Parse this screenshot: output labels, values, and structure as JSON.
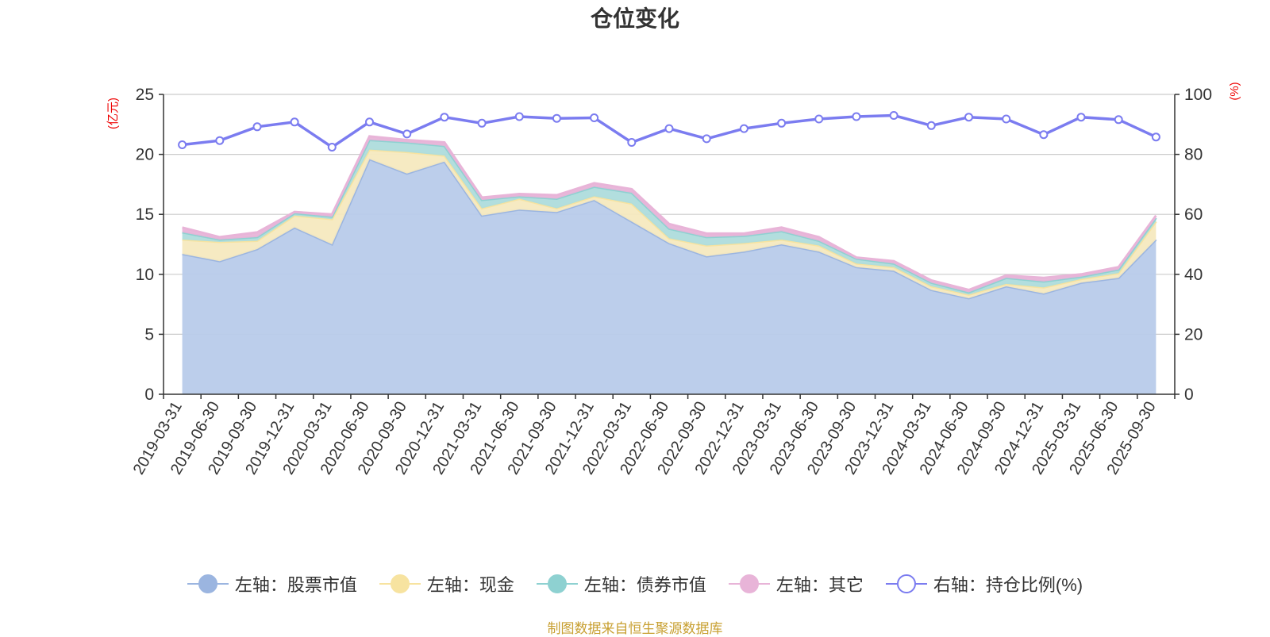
{
  "chart_data": {
    "type": "area",
    "title": "仓位变化",
    "left_axis_unit": "(亿元)",
    "right_axis_unit": "(%)",
    "left_ylim": [
      0,
      25
    ],
    "left_ticks": [
      0,
      5,
      10,
      15,
      20,
      25
    ],
    "right_ylim": [
      0,
      100
    ],
    "right_ticks": [
      0,
      20,
      40,
      60,
      80,
      100
    ],
    "categories": [
      "2019-03-31",
      "2019-06-30",
      "2019-09-30",
      "2019-12-31",
      "2020-03-31",
      "2020-06-30",
      "2020-09-30",
      "2020-12-31",
      "2021-03-31",
      "2021-06-30",
      "2021-09-30",
      "2021-12-31",
      "2022-03-31",
      "2022-06-30",
      "2022-09-30",
      "2022-12-31",
      "2023-03-31",
      "2023-06-30",
      "2023-09-30",
      "2023-12-31",
      "2024-03-31",
      "2024-06-30",
      "2024-09-30",
      "2024-12-31",
      "2025-03-31",
      "2025-06-30",
      "2025-09-30"
    ],
    "stacked_series": [
      {
        "name": "左轴：股票市值",
        "color": "#9bb5e0",
        "fill": "#b8cbea",
        "values": [
          11.7,
          11.1,
          12.1,
          13.9,
          12.5,
          19.6,
          18.4,
          19.4,
          14.9,
          15.4,
          15.2,
          16.2,
          14.4,
          12.6,
          11.5,
          11.9,
          12.5,
          11.9,
          10.6,
          10.3,
          8.7,
          8.0,
          9.0,
          8.4,
          9.3,
          9.7,
          12.9
        ]
      },
      {
        "name": "左轴：现金",
        "color": "#f7e3a0",
        "fill": "#f6e9bf",
        "values": [
          1.2,
          1.6,
          0.7,
          1.0,
          2.1,
          0.8,
          1.8,
          0.5,
          0.6,
          0.9,
          0.3,
          0.3,
          1.5,
          0.4,
          0.9,
          0.7,
          0.4,
          0.5,
          0.3,
          0.3,
          0.3,
          0.3,
          0.2,
          0.5,
          0.3,
          0.4,
          1.5
        ]
      },
      {
        "name": "左轴：债券市值",
        "color": "#8ed1d1",
        "fill": "#aedcdc",
        "values": [
          0.6,
          0.2,
          0.3,
          0.2,
          0.2,
          0.8,
          0.8,
          0.8,
          0.7,
          0.2,
          0.8,
          0.8,
          0.9,
          0.8,
          0.7,
          0.6,
          0.7,
          0.4,
          0.4,
          0.3,
          0.3,
          0.2,
          0.5,
          0.5,
          0.2,
          0.3,
          0.3
        ]
      },
      {
        "name": "左轴：其它",
        "color": "#e8b4d8",
        "fill": "#e8b4d8",
        "values": [
          0.4,
          0.2,
          0.4,
          0.1,
          0.2,
          0.3,
          0.2,
          0.3,
          0.2,
          0.2,
          0.3,
          0.3,
          0.3,
          0.4,
          0.3,
          0.2,
          0.3,
          0.3,
          0.1,
          0.2,
          0.2,
          0.2,
          0.2,
          0.3,
          0.2,
          0.2,
          0.2
        ]
      }
    ],
    "line_series": {
      "name": "右轴：持仓比例(%)",
      "color": "#7b7cf0",
      "values": [
        83.2,
        84.6,
        89.2,
        90.8,
        82.4,
        90.8,
        86.8,
        92.4,
        90.4,
        92.6,
        92.0,
        92.2,
        84.0,
        88.6,
        85.2,
        88.6,
        90.4,
        91.8,
        92.6,
        93.0,
        89.6,
        92.4,
        91.8,
        86.6,
        92.4,
        91.6,
        85.8
      ]
    },
    "source_note": "制图数据来自恒生聚源数据库"
  }
}
